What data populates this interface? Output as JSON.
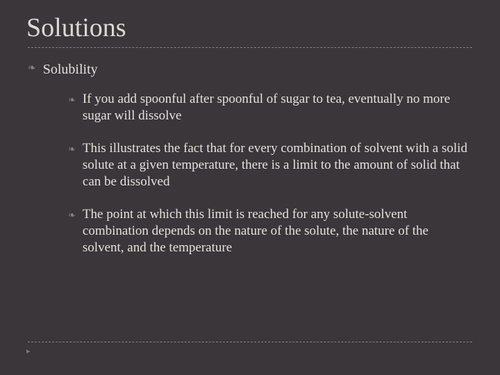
{
  "slide": {
    "title": "Solutions",
    "heading": "Solubility",
    "points": [
      "If you add spoonful after spoonful of sugar to tea, eventually no more sugar will dissolve",
      "This illustrates the fact that for every combination of solvent with a solid solute at a given temperature, there is a limit to the amount of solid that can be dissolved",
      "The point at which this limit is reached for any solute-solvent combination depends on the nature of the solute, the nature of the solvent, and the temperature"
    ],
    "bullet_glyph": "❧",
    "footer_marker": "▸",
    "colors": {
      "background": "#3a3639",
      "text": "#e6e2df",
      "dash": "#888482",
      "arrow": "#8a8684"
    },
    "typography": {
      "title_fontsize": 38,
      "heading_fontsize": 20,
      "body_fontsize": 19,
      "font_family": "Georgia serif"
    }
  }
}
